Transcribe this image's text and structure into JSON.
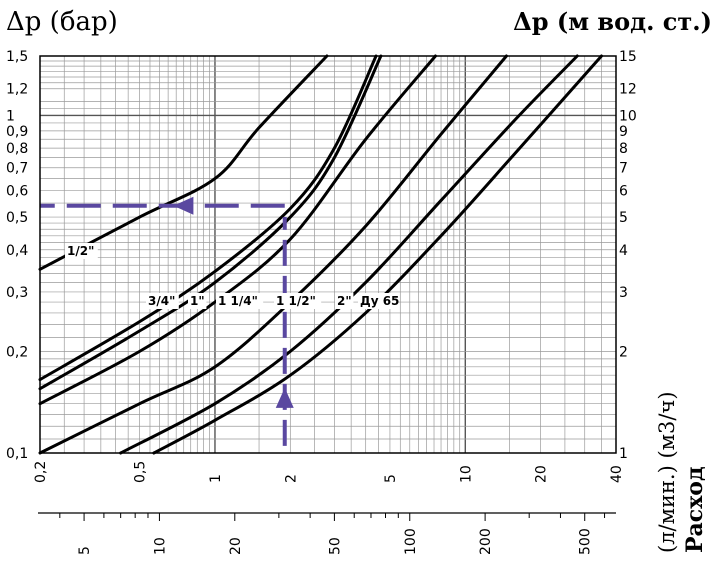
{
  "chart_data": {
    "type": "line",
    "title_left": "Δp (бар)",
    "title_right": "Δp (м вод. ст.)",
    "xlabel_right_bold": "Расход",
    "xlabel_right_rest": "(л/мин.) (м3/ч)",
    "x_scale": "log",
    "y_scale": "log",
    "grid": true,
    "xlim_m3h": [
      0.2,
      40
    ],
    "ylim_bar": [
      0.1,
      1.5
    ],
    "y_ticks_left": [
      {
        "v": 0.1,
        "label": "0,1"
      },
      {
        "v": 0.2,
        "label": "0,2"
      },
      {
        "v": 0.3,
        "label": "0,3"
      },
      {
        "v": 0.4,
        "label": "0,4"
      },
      {
        "v": 0.5,
        "label": "0,5"
      },
      {
        "v": 0.6,
        "label": "0,6"
      },
      {
        "v": 0.7,
        "label": "0,7"
      },
      {
        "v": 0.8,
        "label": "0,8"
      },
      {
        "v": 0.9,
        "label": "0,9"
      },
      {
        "v": 1,
        "label": "1"
      },
      {
        "v": 1.2,
        "label": "1,2"
      },
      {
        "v": 1.5,
        "label": "1,5"
      }
    ],
    "y_ticks_right": [
      {
        "v": 0.1,
        "label": "1"
      },
      {
        "v": 0.2,
        "label": "2"
      },
      {
        "v": 0.3,
        "label": "3"
      },
      {
        "v": 0.4,
        "label": "4"
      },
      {
        "v": 0.5,
        "label": "5"
      },
      {
        "v": 0.6,
        "label": "6"
      },
      {
        "v": 0.7,
        "label": "7"
      },
      {
        "v": 0.8,
        "label": "8"
      },
      {
        "v": 0.9,
        "label": "9"
      },
      {
        "v": 1,
        "label": "10"
      },
      {
        "v": 1.2,
        "label": "12"
      },
      {
        "v": 1.5,
        "label": "15"
      }
    ],
    "x_ticks_m3h": [
      {
        "v": 0.2,
        "label": "0,2"
      },
      {
        "v": 0.5,
        "label": "0,5"
      },
      {
        "v": 1,
        "label": "1"
      },
      {
        "v": 2,
        "label": "2"
      },
      {
        "v": 5,
        "label": "5"
      },
      {
        "v": 10,
        "label": "10"
      },
      {
        "v": 20,
        "label": "20"
      },
      {
        "v": 40,
        "label": "40"
      }
    ],
    "x_ticks_lmin": [
      {
        "v": 5,
        "label": "5"
      },
      {
        "v": 10,
        "label": "10"
      },
      {
        "v": 20,
        "label": "20"
      },
      {
        "v": 50,
        "label": "50"
      },
      {
        "v": 100,
        "label": "100"
      },
      {
        "v": 200,
        "label": "200"
      },
      {
        "v": 500,
        "label": "500"
      }
    ],
    "series": [
      {
        "name": "1/2\"",
        "points": [
          [
            0.2,
            0.35
          ],
          [
            0.5,
            0.5
          ],
          [
            1,
            0.65
          ],
          [
            1.5,
            0.92
          ],
          [
            2.8,
            1.5
          ]
        ]
      },
      {
        "name": "3/4\"",
        "points": [
          [
            0.2,
            0.165
          ],
          [
            0.5,
            0.245
          ],
          [
            1,
            0.345
          ],
          [
            2,
            0.53
          ],
          [
            3,
            0.8
          ],
          [
            4.4,
            1.5
          ]
        ]
      },
      {
        "name": "1\"",
        "points": [
          [
            0.2,
            0.155
          ],
          [
            0.5,
            0.23
          ],
          [
            1,
            0.32
          ],
          [
            2,
            0.5
          ],
          [
            3,
            0.75
          ],
          [
            4.6,
            1.5
          ]
        ]
      },
      {
        "name": "1 1/4\"",
        "points": [
          [
            0.2,
            0.14
          ],
          [
            0.5,
            0.2
          ],
          [
            1,
            0.28
          ],
          [
            2,
            0.43
          ],
          [
            4,
            0.85
          ],
          [
            7.6,
            1.5
          ]
        ]
      },
      {
        "name": "1 1/2\"",
        "points": [
          [
            0.2,
            0.1
          ],
          [
            0.5,
            0.14
          ],
          [
            1,
            0.18
          ],
          [
            2,
            0.28
          ],
          [
            4,
            0.47
          ],
          [
            8,
            0.88
          ],
          [
            14.6,
            1.5
          ]
        ]
      },
      {
        "name": "2\"",
        "points": [
          [
            0.42,
            0.1
          ],
          [
            1,
            0.14
          ],
          [
            2,
            0.2
          ],
          [
            4,
            0.32
          ],
          [
            8,
            0.56
          ],
          [
            16,
            0.98
          ],
          [
            28,
            1.5
          ]
        ]
      },
      {
        "name": "Ду 65",
        "points": [
          [
            0.57,
            0.1
          ],
          [
            1,
            0.125
          ],
          [
            2,
            0.17
          ],
          [
            4,
            0.26
          ],
          [
            8,
            0.44
          ],
          [
            16,
            0.78
          ],
          [
            35,
            1.5
          ]
        ]
      }
    ],
    "annotation_arrows": [
      {
        "kind": "vertical-up",
        "x_m3h": 1.9,
        "y_from_bar": 0.105,
        "y_to_bar": 0.5
      },
      {
        "kind": "horizontal-left",
        "y_bar": 0.54,
        "x_from_m3h": 1.9,
        "x_to_m3h": 0.2
      }
    ],
    "colors": {
      "curve": "#000000",
      "grid": "#9a9a9a",
      "arrow": "#5a48a0"
    }
  }
}
